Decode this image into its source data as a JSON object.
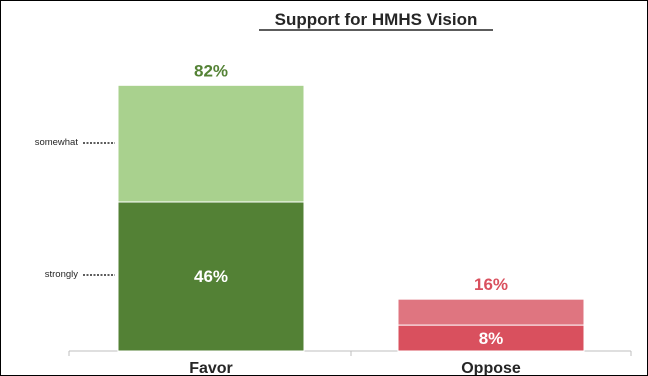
{
  "chart_data": {
    "type": "bar",
    "title": "Support for HMHS Vision",
    "categories": [
      "Favor",
      "Oppose"
    ],
    "series": [
      {
        "name": "strongly",
        "values": [
          46,
          8
        ],
        "colors": [
          "#538135",
          "#d9505e"
        ]
      },
      {
        "name": "somewhat",
        "values": [
          36,
          8
        ],
        "colors": [
          "#a9d18e",
          "#df7580"
        ]
      }
    ],
    "totals": [
      "82%",
      "16%"
    ],
    "total_colors": [
      "#548235",
      "#d9505e"
    ],
    "segment_labels": [
      "46%",
      "8%"
    ],
    "segment_label_series": "strongly",
    "ylim": [
      0,
      100
    ],
    "grid": false,
    "xlabel": "",
    "ylabel": ""
  }
}
